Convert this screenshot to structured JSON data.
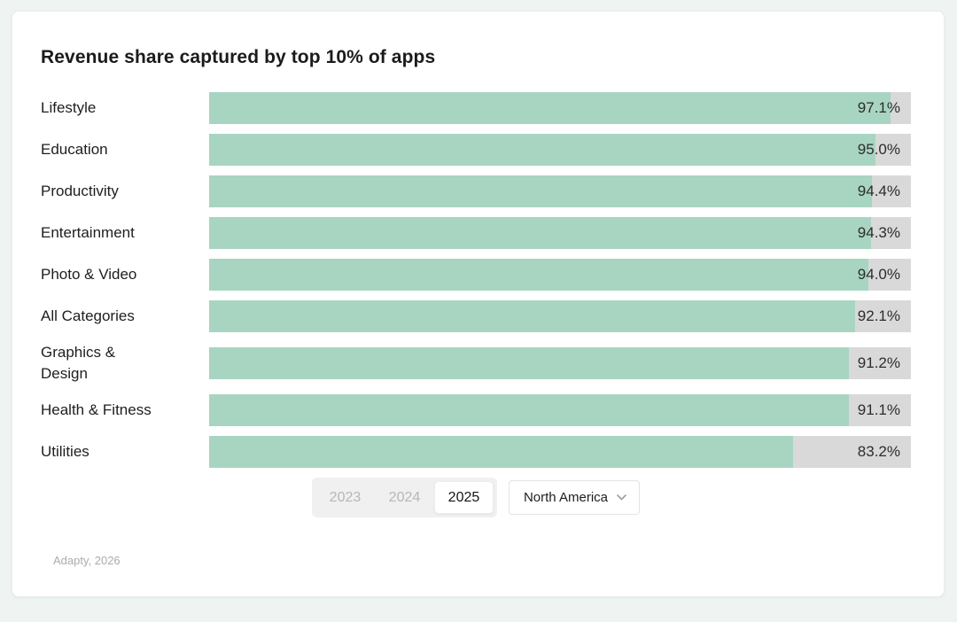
{
  "page": {
    "background": "#eff4f2"
  },
  "chart_data": {
    "type": "bar",
    "orientation": "horizontal",
    "title": "Revenue share captured by top 10% of apps",
    "categories": [
      "Lifestyle",
      "Education",
      "Productivity",
      "Entertainment",
      "Photo & Video",
      "All Categories",
      "Graphics &\nDesign",
      "Health & Fitness",
      "Utilities"
    ],
    "values": [
      97.1,
      95.0,
      94.4,
      94.3,
      94.0,
      92.1,
      91.2,
      91.1,
      83.2
    ],
    "value_labels": [
      "97.1%",
      "95.0%",
      "94.4%",
      "94.3%",
      "94.0%",
      "92.1%",
      "91.2%",
      "91.1%",
      "83.2%"
    ],
    "xlim": [
      0,
      100
    ],
    "grid": false,
    "legend": false,
    "bar_color": "#a8d5c2",
    "track_color": "#d9d9d9"
  },
  "controls": {
    "year_tabs": [
      {
        "label": "2023",
        "selected": false
      },
      {
        "label": "2024",
        "selected": false
      },
      {
        "label": "2025",
        "selected": true
      }
    ],
    "region_dropdown": {
      "value": "North America"
    }
  },
  "source": "Adapty, 2026"
}
